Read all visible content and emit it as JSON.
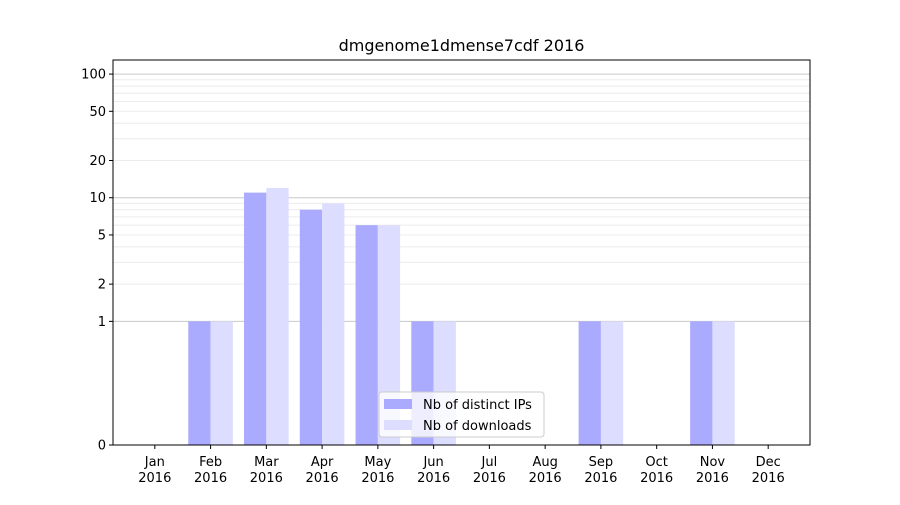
{
  "chart_data": {
    "type": "bar",
    "title": "dmgenome1dmense7cdf 2016",
    "xlabel": "",
    "ylabel": "",
    "categories": [
      {
        "month": "Jan",
        "year": "2016"
      },
      {
        "month": "Feb",
        "year": "2016"
      },
      {
        "month": "Mar",
        "year": "2016"
      },
      {
        "month": "Apr",
        "year": "2016"
      },
      {
        "month": "May",
        "year": "2016"
      },
      {
        "month": "Jun",
        "year": "2016"
      },
      {
        "month": "Jul",
        "year": "2016"
      },
      {
        "month": "Aug",
        "year": "2016"
      },
      {
        "month": "Sep",
        "year": "2016"
      },
      {
        "month": "Oct",
        "year": "2016"
      },
      {
        "month": "Nov",
        "year": "2016"
      },
      {
        "month": "Dec",
        "year": "2016"
      }
    ],
    "series": [
      {
        "name": "Nb of distinct IPs",
        "color": "#aaaaff",
        "values": [
          0,
          1,
          11,
          8,
          6,
          1,
          0,
          0,
          1,
          0,
          1,
          0
        ]
      },
      {
        "name": "Nb of downloads",
        "color": "#ddddff",
        "values": [
          0,
          1,
          12,
          9,
          6,
          1,
          0,
          0,
          1,
          0,
          1,
          0
        ]
      }
    ],
    "y_scale": "symlog",
    "ylim": [
      0,
      130
    ],
    "y_ticks": [
      {
        "value": 0,
        "label": "0"
      },
      {
        "value": 1,
        "label": "1"
      },
      {
        "value": 2,
        "label": "2"
      },
      {
        "value": 5,
        "label": "5"
      },
      {
        "value": 10,
        "label": "10"
      },
      {
        "value": 20,
        "label": "20"
      },
      {
        "value": 50,
        "label": "50"
      },
      {
        "value": 100,
        "label": "100"
      }
    ],
    "grid": true,
    "legend_position": "bottom-center"
  }
}
